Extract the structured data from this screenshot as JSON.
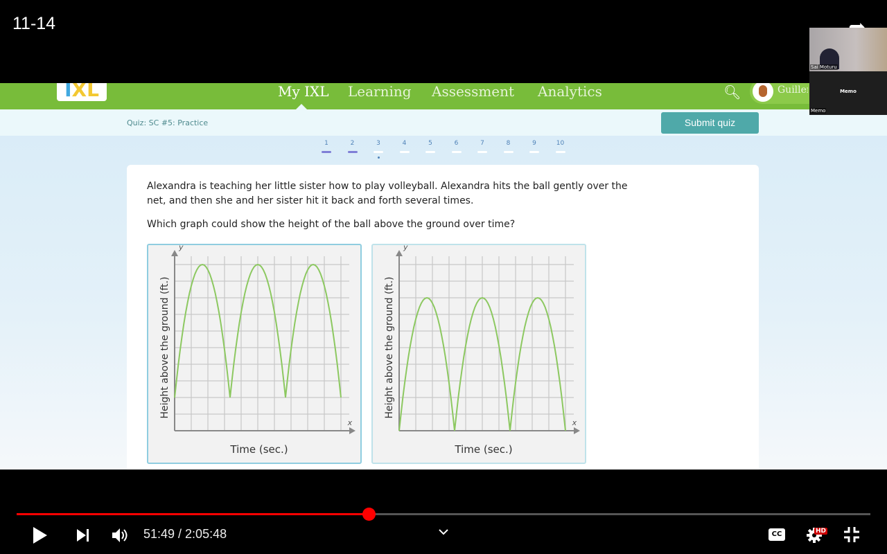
{
  "video": {
    "title": "11-14",
    "current_time": "51:49",
    "duration": "2:05:48",
    "time_display": "51:49 / 2:05:48",
    "progress_fraction": 0.412,
    "progress_color": "#ff0000",
    "icons": [
      "play-icon",
      "next-icon",
      "volume-icon",
      "chevron-down-icon",
      "captions-icon",
      "settings-icon",
      "fullscreen-exit-icon",
      "share-icon"
    ],
    "hd_badge": "HD",
    "cc_label": "CC"
  },
  "ixl": {
    "logo": "IXL",
    "nav": [
      "My IXL",
      "Learning",
      "Assessment",
      "Analytics"
    ],
    "active_nav": "My IXL",
    "user": "Guillermo",
    "brand_color": "#78bc3a",
    "quiz_title": "Quiz: SC #5: Practice",
    "submit_label": "Submit quiz",
    "question_numbers": [
      "1",
      "2",
      "3",
      "4",
      "5",
      "6",
      "7",
      "8",
      "9",
      "10"
    ],
    "answered": [
      1,
      2
    ],
    "current_question": 3,
    "question": "Alexandra is teaching her little sister how to play volleyball. Alexandra hits the ball gently over the net, and then she and her sister hit it back and forth several times.",
    "prompt": "Which graph could show the height of the ball above the ground over time?"
  },
  "zoom_overlay": {
    "participant_1": "Sai Moturu",
    "participant_2": "Memo",
    "participant_2_center": "Memo"
  },
  "chart_data": [
    {
      "type": "line",
      "xlabel": "Time (sec.)",
      "ylabel": "Height above the ground (ft.)",
      "x_axis_letter": "x",
      "y_axis_letter": "y",
      "grid": true,
      "selected": true,
      "x": [
        0,
        1.667,
        3.333,
        5,
        6.667,
        8.333,
        10
      ],
      "y": [
        2,
        10,
        2,
        10,
        2,
        10,
        2
      ],
      "shape": "three parabolic arcs",
      "color": "#8cc860"
    },
    {
      "type": "line",
      "xlabel": "Time (sec.)",
      "ylabel": "Height above the ground (ft.)",
      "x_axis_letter": "x",
      "y_axis_letter": "y",
      "grid": true,
      "selected": false,
      "x": [
        0,
        1.667,
        3.333,
        5,
        6.667,
        8.333,
        10
      ],
      "y": [
        0,
        8,
        0,
        8,
        0,
        8,
        0
      ],
      "shape": "three parabolic arcs",
      "color": "#8cc860"
    }
  ]
}
